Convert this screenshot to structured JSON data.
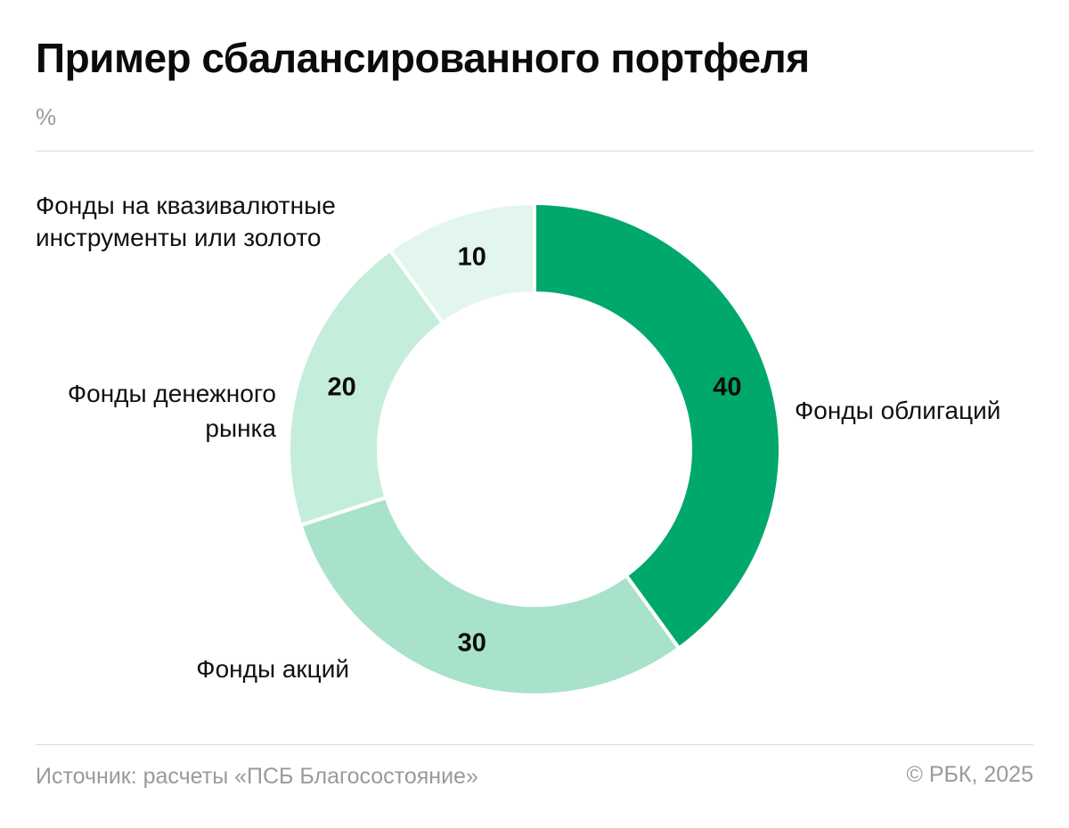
{
  "title": "Пример сбалансированного портфеля",
  "unit": "%",
  "footer": {
    "source": "Источник: расчеты «ПСБ Благосостояние»",
    "copyright": "© РБК, 2025"
  },
  "chart_data": {
    "type": "pie",
    "donut": true,
    "title": "Пример сбалансированного портфеля",
    "unit": "%",
    "start_angle_deg": 0,
    "direction": "clockwise",
    "slices": [
      {
        "label": [
          "Фонды облигаций"
        ],
        "value": 40,
        "color": "#00a86b"
      },
      {
        "label": [
          "Фонды акций"
        ],
        "value": 30,
        "color": "#a8e2ca"
      },
      {
        "label": [
          "Фонды денежного",
          "рынка"
        ],
        "value": 20,
        "color": "#c5eddb"
      },
      {
        "label": [
          "Фонды на квазивалютные",
          "инструменты или золото"
        ],
        "value": 10,
        "color": "#e3f6ee"
      }
    ]
  }
}
